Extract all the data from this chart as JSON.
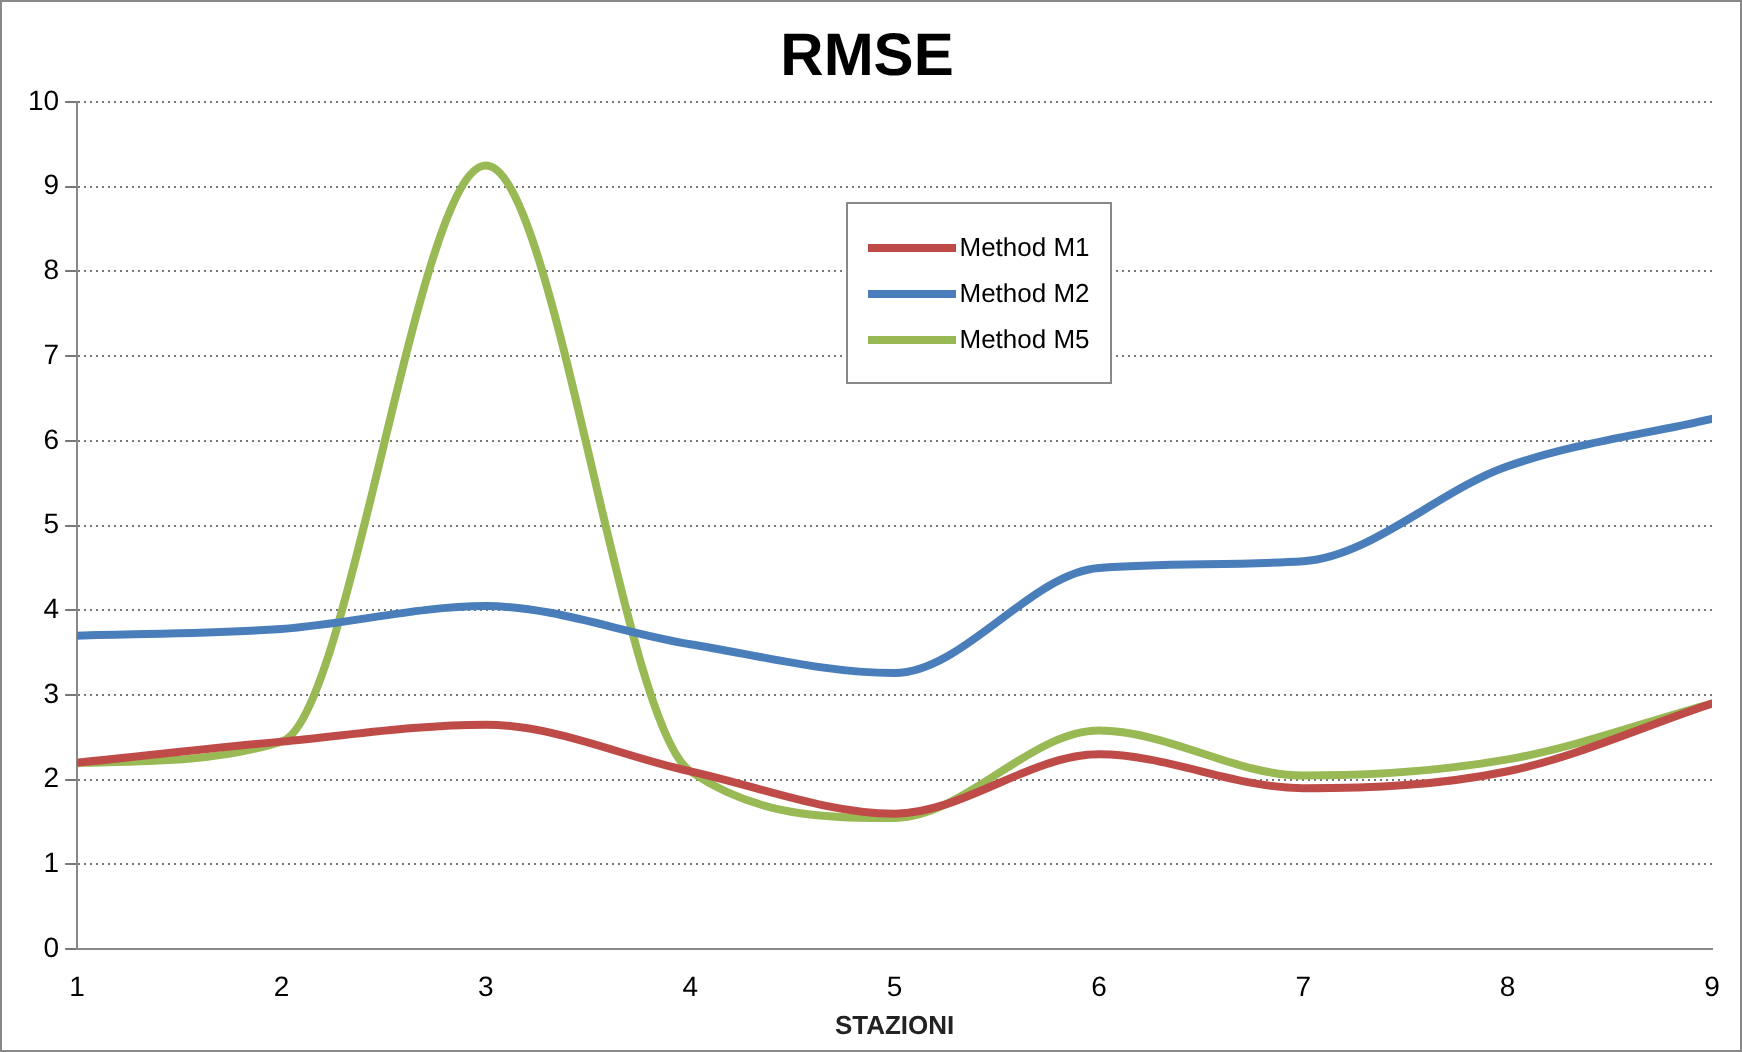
{
  "chart_data": {
    "type": "line",
    "title": "RMSE",
    "xlabel": "STAZIONI",
    "x": [
      1,
      2,
      3,
      4,
      5,
      6,
      7,
      8,
      9
    ],
    "series": [
      {
        "name": "Method M1",
        "color": "#be4b48",
        "values": [
          2.2,
          2.45,
          2.65,
          2.1,
          1.6,
          2.3,
          1.9,
          2.1,
          2.9
        ]
      },
      {
        "name": "Method M2",
        "color": "#4a7ebb",
        "values": [
          3.7,
          3.78,
          4.05,
          3.6,
          3.26,
          4.5,
          4.58,
          5.7,
          6.26
        ]
      },
      {
        "name": "Method M5",
        "color": "#98b954",
        "values": [
          2.2,
          2.45,
          9.25,
          2.1,
          1.55,
          2.58,
          2.05,
          2.24,
          2.9
        ]
      }
    ],
    "xlim": [
      1,
      9
    ],
    "xticks": [
      1,
      2,
      3,
      4,
      5,
      6,
      7,
      8,
      9
    ],
    "ylim": [
      0,
      10
    ],
    "yticks": [
      0,
      1,
      2,
      3,
      4,
      5,
      6,
      7,
      8,
      9,
      10
    ],
    "grid": "y",
    "legend": "top",
    "marker": "none",
    "line_style": "solid"
  }
}
